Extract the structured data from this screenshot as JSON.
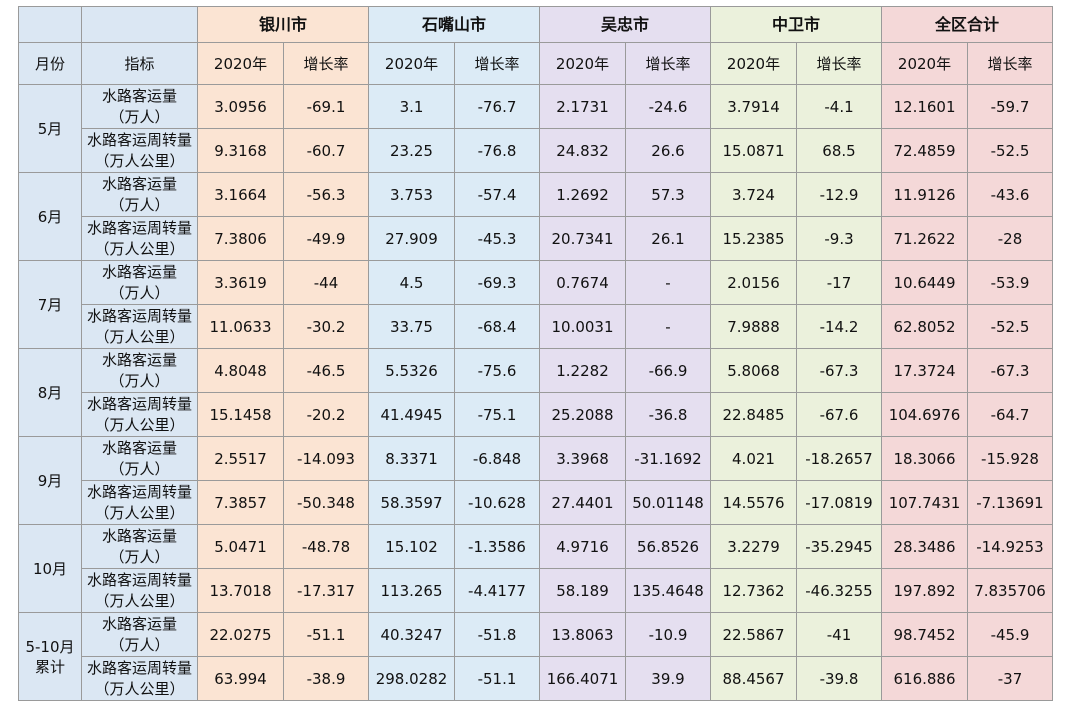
{
  "header": {
    "month_label": "月份",
    "indicator_label": "指标",
    "cities": [
      "银川市",
      "石嘴山市",
      "吴忠市",
      "中卫市",
      "全区合计"
    ],
    "sub_headers": [
      "2020年",
      "增长率"
    ]
  },
  "indicators": {
    "passenger": [
      "水路客运量",
      "（万人）"
    ],
    "turnover": [
      "水路客运周转量",
      "（万人公里）"
    ]
  },
  "colors": {
    "yinchuan": "#fbe4d3",
    "shizuishan": "#dcebf6",
    "wuzhong": "#e5dff0",
    "zhongwei": "#ebf1dc",
    "total": "#f4d8d8",
    "lead_columns": "#dbe7f3"
  },
  "periods": [
    {
      "month": [
        "5月"
      ],
      "passenger": [
        "3.0956",
        "-69.1",
        "3.1",
        "-76.7",
        "2.1731",
        "-24.6",
        "3.7914",
        "-4.1",
        "12.1601",
        "-59.7"
      ],
      "turnover": [
        "9.3168",
        "-60.7",
        "23.25",
        "-76.8",
        "24.832",
        "26.6",
        "15.0871",
        "68.5",
        "72.4859",
        "-52.5"
      ]
    },
    {
      "month": [
        "6月"
      ],
      "passenger": [
        "3.1664",
        "-56.3",
        "3.753",
        "-57.4",
        "1.2692",
        "57.3",
        "3.724",
        "-12.9",
        "11.9126",
        "-43.6"
      ],
      "turnover": [
        "7.3806",
        "-49.9",
        "27.909",
        "-45.3",
        "20.7341",
        "26.1",
        "15.2385",
        "-9.3",
        "71.2622",
        "-28"
      ]
    },
    {
      "month": [
        "7月"
      ],
      "passenger": [
        "3.3619",
        "-44",
        "4.5",
        "-69.3",
        "0.7674",
        "-",
        "2.0156",
        "-17",
        "10.6449",
        "-53.9"
      ],
      "turnover": [
        "11.0633",
        "-30.2",
        "33.75",
        "-68.4",
        "10.0031",
        "-",
        "7.9888",
        "-14.2",
        "62.8052",
        "-52.5"
      ]
    },
    {
      "month": [
        "8月"
      ],
      "passenger": [
        "4.8048",
        "-46.5",
        "5.5326",
        "-75.6",
        "1.2282",
        "-66.9",
        "5.8068",
        "-67.3",
        "17.3724",
        "-67.3"
      ],
      "turnover": [
        "15.1458",
        "-20.2",
        "41.4945",
        "-75.1",
        "25.2088",
        "-36.8",
        "22.8485",
        "-67.6",
        "104.6976",
        "-64.7"
      ]
    },
    {
      "month": [
        "9月"
      ],
      "passenger": [
        "2.5517",
        "-14.093",
        "8.3371",
        "-6.848",
        "3.3968",
        "-31.1692",
        "4.021",
        "-18.2657",
        "18.3066",
        "-15.928"
      ],
      "turnover": [
        "7.3857",
        "-50.348",
        "58.3597",
        "-10.628",
        "27.4401",
        "50.01148",
        "14.5576",
        "-17.0819",
        "107.7431",
        "-7.13691"
      ]
    },
    {
      "month": [
        "10月"
      ],
      "passenger": [
        "5.0471",
        "-48.78",
        "15.102",
        "-1.3586",
        "4.9716",
        "56.8526",
        "3.2279",
        "-35.2945",
        "28.3486",
        "-14.9253"
      ],
      "turnover": [
        "13.7018",
        "-17.317",
        "113.265",
        "-4.4177",
        "58.189",
        "135.4648",
        "12.7362",
        "-46.3255",
        "197.892",
        "7.835706"
      ]
    },
    {
      "month": [
        "5-10月",
        "累计"
      ],
      "passenger": [
        "22.0275",
        "-51.1",
        "40.3247",
        "-51.8",
        "13.8063",
        "-10.9",
        "22.5867",
        "-41",
        "98.7452",
        "-45.9"
      ],
      "turnover": [
        "63.994",
        "-38.9",
        "298.0282",
        "-51.1",
        "166.4071",
        "39.9",
        "88.4567",
        "-39.8",
        "616.886",
        "-37"
      ]
    }
  ]
}
